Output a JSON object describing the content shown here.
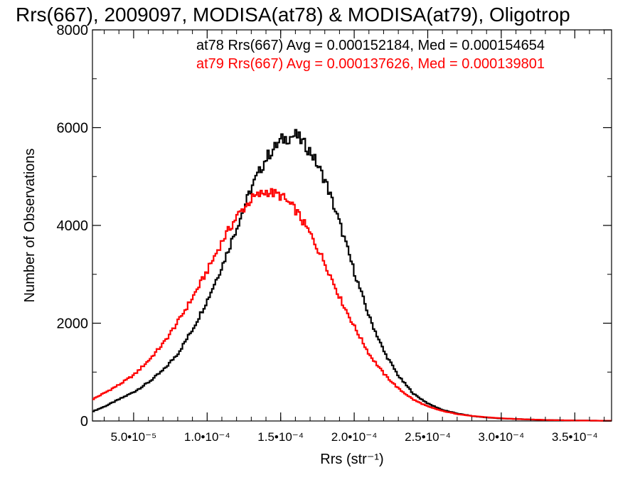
{
  "chart_data": {
    "type": "line",
    "title": "Rrs(667), 2009097, MODISA(at78) & MODISA(at79), Oligotrop",
    "xlabel": "Rrs (str⁻¹)",
    "ylabel": "Number of Observations",
    "xlim": [
      2.2e-05,
      0.000375
    ],
    "ylim": [
      0,
      8000
    ],
    "x_ticks": [
      {
        "value": 5e-05,
        "label": "5.0•10⁻⁵"
      },
      {
        "value": 0.0001,
        "label": "1.0•10⁻⁴"
      },
      {
        "value": 0.00015,
        "label": "1.5•10⁻⁴"
      },
      {
        "value": 0.0002,
        "label": "2.0•10⁻⁴"
      },
      {
        "value": 0.00025,
        "label": "2.5•10⁻⁴"
      },
      {
        "value": 0.0003,
        "label": "3.0•10⁻⁴"
      },
      {
        "value": 0.00035,
        "label": "3.5•10⁻⁴"
      }
    ],
    "y_ticks": [
      {
        "value": 0,
        "label": "0"
      },
      {
        "value": 2000,
        "label": "2000"
      },
      {
        "value": 4000,
        "label": "4000"
      },
      {
        "value": 6000,
        "label": "6000"
      },
      {
        "value": 8000,
        "label": "8000"
      }
    ],
    "grid": false,
    "annotations": [
      {
        "text": "at78 Rrs(667) Avg = 0.000152184, Med = 0.000154654",
        "color": "#000000"
      },
      {
        "text": "at79 Rrs(667) Avg = 0.000137626, Med = 0.000139801",
        "color": "#ff0000"
      }
    ],
    "series": [
      {
        "color": "#000000",
        "x": [
          2.2e-05,
          3e-05,
          4e-05,
          5e-05,
          6e-05,
          7e-05,
          8e-05,
          9e-05,
          0.0001,
          0.00011,
          0.00012,
          0.00013,
          0.00014,
          0.00015,
          0.00016,
          0.00017,
          0.00018,
          0.00019,
          0.0002,
          0.00021,
          0.00022,
          0.00023,
          0.00024,
          0.00025,
          0.00026,
          0.00027,
          0.00028,
          0.00029,
          0.0003,
          0.00031,
          0.00032,
          0.00033,
          0.00034,
          0.00035,
          0.00036,
          0.00037
        ],
        "y": [
          200,
          300,
          450,
          600,
          800,
          1050,
          1400,
          1900,
          2500,
          3200,
          4000,
          4800,
          5400,
          5750,
          5850,
          5500,
          4900,
          4000,
          3000,
          2100,
          1400,
          900,
          550,
          350,
          220,
          150,
          100,
          70,
          50,
          40,
          30,
          20,
          15,
          10,
          8,
          5
        ]
      },
      {
        "color": "#ff0000",
        "x": [
          2.2e-05,
          3e-05,
          4e-05,
          5e-05,
          6e-05,
          7e-05,
          8e-05,
          9e-05,
          0.0001,
          0.00011,
          0.00012,
          0.00013,
          0.00014,
          0.00015,
          0.00016,
          0.00017,
          0.00018,
          0.00019,
          0.0002,
          0.00021,
          0.00022,
          0.00023,
          0.00024,
          0.00025,
          0.00026,
          0.00027,
          0.00028,
          0.00029,
          0.0003,
          0.00031,
          0.00032,
          0.00033,
          0.00034,
          0.00035,
          0.00036,
          0.00037
        ],
        "y": [
          450,
          580,
          750,
          950,
          1250,
          1600,
          2050,
          2550,
          3100,
          3700,
          4200,
          4550,
          4700,
          4600,
          4300,
          3800,
          3200,
          2500,
          1900,
          1350,
          950,
          650,
          430,
          290,
          200,
          140,
          100,
          75,
          55,
          40,
          30,
          20,
          15,
          10,
          8,
          5
        ]
      }
    ]
  }
}
